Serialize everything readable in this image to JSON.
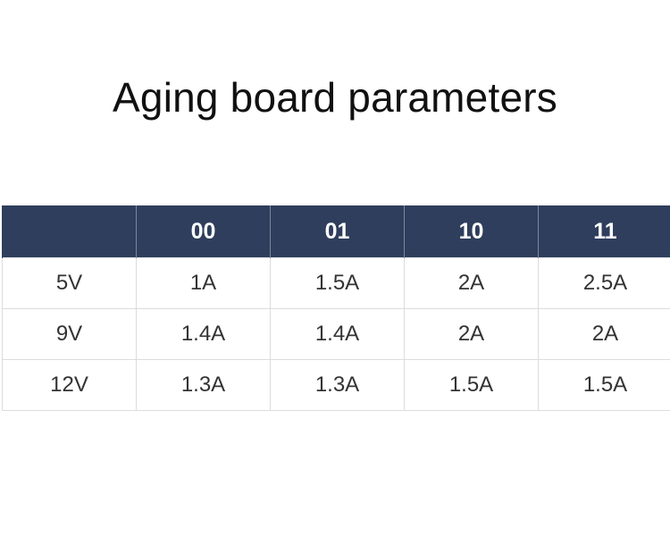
{
  "title": "Aging board parameters",
  "table": {
    "header": [
      "",
      "00",
      "01",
      "10",
      "11"
    ],
    "rows": [
      [
        "5V",
        "1A",
        "1.5A",
        "2A",
        "2.5A"
      ],
      [
        "9V",
        "1.4A",
        "1.4A",
        "2A",
        "2A"
      ],
      [
        "12V",
        "1.3A",
        "1.3A",
        "1.5A",
        "1.5A"
      ]
    ]
  },
  "colors": {
    "header_background": "#2e3e5c",
    "header_text": "#ffffff",
    "cell_border": "#dcdcdc"
  }
}
